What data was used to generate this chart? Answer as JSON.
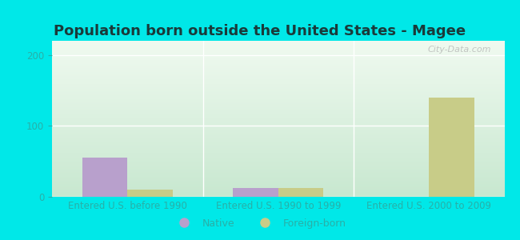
{
  "title": "Population born outside the United States - Magee",
  "background_color": "#00e8e8",
  "plot_bg_top": "#f0faf0",
  "plot_bg_bottom": "#c8e8d0",
  "categories": [
    "Entered U.S. before 1990",
    "Entered U.S. 1990 to 1999",
    "Entered U.S. 2000 to 2009"
  ],
  "native_values": [
    55,
    12,
    0
  ],
  "foreign_values": [
    10,
    12,
    140
  ],
  "native_color": "#b8a0cc",
  "foreign_color": "#c8cc88",
  "ylabel_ticks": [
    0,
    100,
    200
  ],
  "ylim": [
    0,
    220
  ],
  "bar_width": 0.3,
  "xlabel_color": "#28b0a8",
  "tick_color": "#28b0a8",
  "grid_color": "#ffffff",
  "title_fontsize": 13,
  "title_color": "#1a3a3a",
  "label_fontsize": 8.5,
  "legend_fontsize": 9,
  "watermark": "City-Data.com"
}
